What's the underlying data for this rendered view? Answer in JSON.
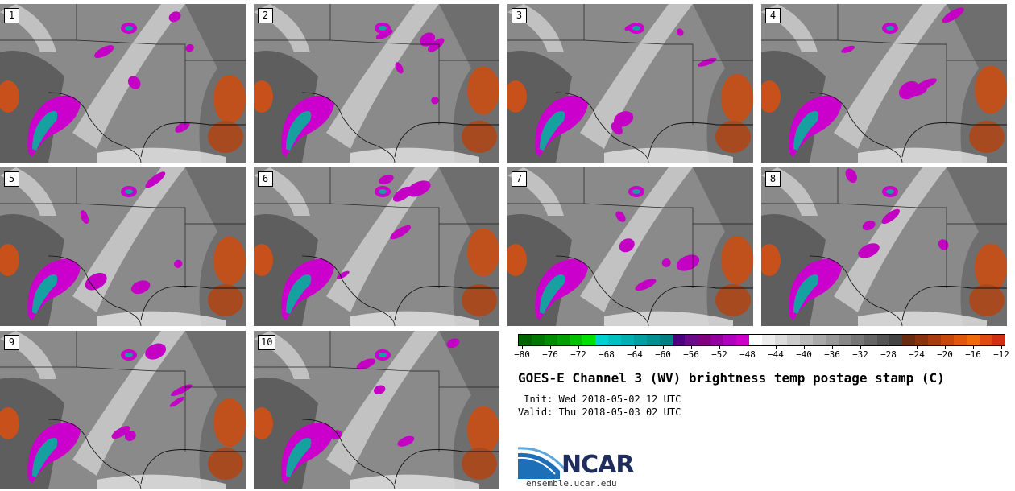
{
  "panels": [
    {
      "label": "1"
    },
    {
      "label": "2"
    },
    {
      "label": "3"
    },
    {
      "label": "4"
    },
    {
      "label": "5"
    },
    {
      "label": "6"
    },
    {
      "label": "7"
    },
    {
      "label": "8"
    },
    {
      "label": "9"
    },
    {
      "label": "10"
    }
  ],
  "colorbar": {
    "colors": [
      "#006400",
      "#007800",
      "#008c00",
      "#00a000",
      "#00c000",
      "#00e000",
      "#00d0d0",
      "#00c0c0",
      "#00b0b0",
      "#00a0a0",
      "#009090",
      "#008080",
      "#4b0082",
      "#6a0a8a",
      "#800080",
      "#9400a0",
      "#b000c0",
      "#cc00cc",
      "#ffffff",
      "#ededed",
      "#dcdcdc",
      "#cbcbcb",
      "#bababa",
      "#a9a9a9",
      "#989898",
      "#878787",
      "#767676",
      "#656565",
      "#545454",
      "#434343",
      "#6b2a12",
      "#8a3210",
      "#a83c0e",
      "#c8480c",
      "#e0560a",
      "#f06a0a",
      "#e04a10",
      "#d03010"
    ],
    "tick_labels": [
      "−80",
      "−76",
      "−72",
      "−68",
      "−64",
      "−60",
      "−56",
      "−52",
      "−48",
      "−44",
      "−40",
      "−36",
      "−32",
      "−28",
      "−24",
      "−20",
      "−16",
      "−12"
    ],
    "range": [
      -80,
      -10
    ]
  },
  "title": "GOES-E Channel 3 (WV) brightness temp postage stamp (C)",
  "init": " Init: Wed 2018-05-02 12 UTC",
  "valid": "Valid: Thu 2018-05-03 02 UTC",
  "logo": {
    "name": "NCAR",
    "url": "ensemble.ucar.edu"
  }
}
